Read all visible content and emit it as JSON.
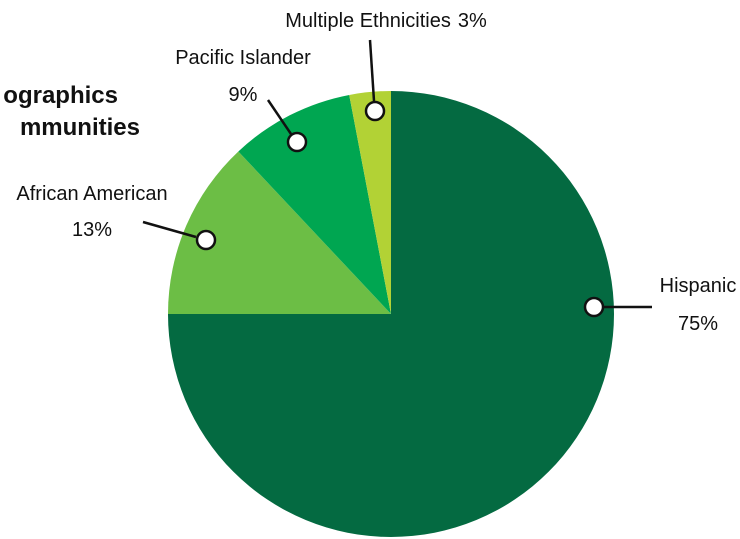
{
  "chart_data": {
    "type": "pie",
    "title_lines": [
      "ographics",
      "mmunities"
    ],
    "start_angle_deg": 0,
    "direction": "clockwise",
    "legend": "none",
    "slices": [
      {
        "label": "Hispanic",
        "value": 75,
        "value_label": "75%",
        "color": "#046a41"
      },
      {
        "label": "African American",
        "value": 13,
        "value_label": "13%",
        "color": "#6cbe45"
      },
      {
        "label": "Pacific Islander",
        "value": 9,
        "value_label": "9%",
        "color": "#00a651"
      },
      {
        "label": "Multiple Ethnicities",
        "value": 3,
        "value_label": "3%",
        "color": "#b2d235"
      }
    ]
  }
}
